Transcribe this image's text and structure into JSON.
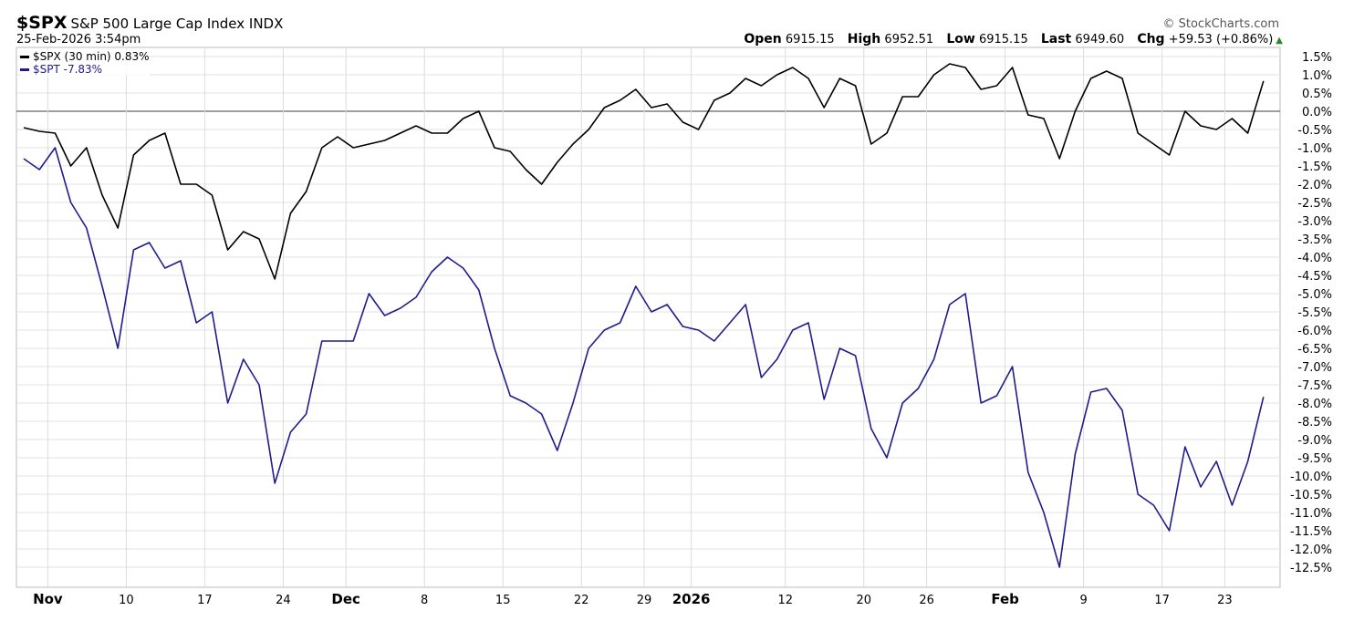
{
  "header": {
    "symbol": "$SPX",
    "name": "S&P 500 Large Cap Index INDX",
    "timestamp": "25-Feb-2026 3:54pm",
    "copyright": "© StockCharts.com",
    "open_label": "Open",
    "open": "6915.15",
    "high_label": "High",
    "high": "6952.51",
    "low_label": "Low",
    "low": "6915.15",
    "last_label": "Last",
    "last": "6949.60",
    "chg_label": "Chg",
    "chg": "+59.53 (+0.86%)",
    "chg_direction_icon": "triangle-up-icon",
    "up_color": "#2a8a2a"
  },
  "chart_data": {
    "type": "line",
    "ylim": [
      -13.0,
      1.75
    ],
    "y_ticks": [
      1.5,
      1.0,
      0.5,
      0.0,
      -0.5,
      -1.0,
      -1.5,
      -2.0,
      -2.5,
      -3.0,
      -3.5,
      -4.0,
      -4.5,
      -5.0,
      -5.5,
      -6.0,
      -6.5,
      -7.0,
      -7.5,
      -8.0,
      -8.5,
      -9.0,
      -9.5,
      -10.0,
      -10.5,
      -11.0,
      -11.5,
      -12.0,
      -12.5
    ],
    "y_tick_suffix": "%",
    "y_axis_side": "right",
    "grid": true,
    "legend_placement": "top-left",
    "x_ticks": [
      {
        "label": "Nov",
        "date": "2025-11-03",
        "bold": true
      },
      {
        "label": "10",
        "date": "2025-11-10"
      },
      {
        "label": "17",
        "date": "2025-11-17"
      },
      {
        "label": "24",
        "date": "2025-11-24"
      },
      {
        "label": "Dec",
        "date": "2025-12-01",
        "bold": true
      },
      {
        "label": "8",
        "date": "2025-12-08"
      },
      {
        "label": "15",
        "date": "2025-12-15"
      },
      {
        "label": "22",
        "date": "2025-12-22"
      },
      {
        "label": "29",
        "date": "2025-12-29"
      },
      {
        "label": "2026",
        "date": "2026-01-02",
        "bold": true
      },
      {
        "label": "12",
        "date": "2026-01-12"
      },
      {
        "label": "20",
        "date": "2026-01-20"
      },
      {
        "label": "26",
        "date": "2026-01-26"
      },
      {
        "label": "Feb",
        "date": "2026-02-02",
        "bold": true
      },
      {
        "label": "9",
        "date": "2026-02-09"
      },
      {
        "label": "17",
        "date": "2026-02-17"
      },
      {
        "label": "23",
        "date": "2026-02-23"
      }
    ],
    "x": [
      "2025-10-30",
      "2025-10-31",
      "2025-11-03",
      "2025-11-04",
      "2025-11-05",
      "2025-11-06",
      "2025-11-07",
      "2025-11-10",
      "2025-11-11",
      "2025-11-12",
      "2025-11-13",
      "2025-11-14",
      "2025-11-17",
      "2025-11-18",
      "2025-11-19",
      "2025-11-20",
      "2025-11-21",
      "2025-11-24",
      "2025-11-25",
      "2025-11-26",
      "2025-11-28",
      "2025-12-01",
      "2025-12-02",
      "2025-12-03",
      "2025-12-04",
      "2025-12-05",
      "2025-12-08",
      "2025-12-09",
      "2025-12-10",
      "2025-12-11",
      "2025-12-12",
      "2025-12-15",
      "2025-12-16",
      "2025-12-17",
      "2025-12-18",
      "2025-12-19",
      "2025-12-22",
      "2025-12-23",
      "2025-12-24",
      "2025-12-26",
      "2025-12-29",
      "2025-12-30",
      "2025-12-31",
      "2026-01-02",
      "2026-01-05",
      "2026-01-06",
      "2026-01-07",
      "2026-01-08",
      "2026-01-09",
      "2026-01-12",
      "2026-01-13",
      "2026-01-14",
      "2026-01-15",
      "2026-01-16",
      "2026-01-20",
      "2026-01-21",
      "2026-01-22",
      "2026-01-23",
      "2026-01-26",
      "2026-01-27",
      "2026-01-28",
      "2026-01-29",
      "2026-01-30",
      "2026-02-02",
      "2026-02-03",
      "2026-02-04",
      "2026-02-05",
      "2026-02-06",
      "2026-02-09",
      "2026-02-10",
      "2026-02-11",
      "2026-02-12",
      "2026-02-13",
      "2026-02-17",
      "2026-02-18",
      "2026-02-19",
      "2026-02-20",
      "2026-02-23",
      "2026-02-24",
      "2026-02-25"
    ],
    "series": [
      {
        "name": "$SPX (30 min) 0.83%",
        "color": "#000000",
        "values": [
          -0.45,
          -0.55,
          -0.6,
          -1.5,
          -1.0,
          -2.3,
          -3.2,
          -1.2,
          -0.8,
          -0.6,
          -2.0,
          -2.0,
          -2.3,
          -3.8,
          -3.3,
          -3.5,
          -4.6,
          -2.8,
          -2.2,
          -1.0,
          -0.7,
          -1.0,
          -0.9,
          -0.8,
          -0.6,
          -0.4,
          -0.6,
          -0.6,
          -0.2,
          0.0,
          -1.0,
          -1.1,
          -1.6,
          -2.0,
          -1.4,
          -0.9,
          -0.5,
          0.1,
          0.3,
          0.6,
          0.1,
          0.2,
          -0.3,
          -0.5,
          0.3,
          0.5,
          0.9,
          0.7,
          1.0,
          1.2,
          0.9,
          0.1,
          0.9,
          0.7,
          -0.9,
          -0.6,
          0.4,
          0.4,
          1.0,
          1.3,
          1.2,
          0.6,
          0.7,
          1.2,
          -0.1,
          -0.2,
          -1.3,
          0.0,
          0.9,
          1.1,
          0.9,
          -0.6,
          -0.9,
          -1.2,
          0.0,
          -0.4,
          -0.5,
          -0.2,
          -0.6,
          0.83
        ]
      },
      {
        "name": "$SPT -7.83%",
        "color": "#1f1d8c",
        "values": [
          -1.3,
          -1.6,
          -1.0,
          -2.5,
          -3.2,
          -4.8,
          -6.5,
          -3.8,
          -3.6,
          -4.3,
          -4.1,
          -5.8,
          -5.5,
          -8.0,
          -6.8,
          -7.5,
          -10.2,
          -8.8,
          -8.3,
          -6.3,
          -6.3,
          -6.3,
          -5.0,
          -5.6,
          -5.4,
          -5.1,
          -4.4,
          -4.0,
          -4.3,
          -4.9,
          -6.5,
          -7.8,
          -8.0,
          -8.3,
          -9.3,
          -8.0,
          -6.5,
          -6.0,
          -5.8,
          -4.8,
          -5.5,
          -5.3,
          -5.9,
          -6.0,
          -6.3,
          -5.8,
          -5.3,
          -7.3,
          -6.8,
          -6.0,
          -5.8,
          -7.9,
          -6.5,
          -6.7,
          -8.7,
          -9.5,
          -8.0,
          -7.6,
          -6.8,
          -5.3,
          -5.0,
          -8.0,
          -7.8,
          -7.0,
          -9.9,
          -11.0,
          -12.5,
          -9.4,
          -7.7,
          -7.6,
          -8.2,
          -10.5,
          -10.8,
          -11.5,
          -9.2,
          -10.3,
          -9.6,
          -10.8,
          -9.6,
          -7.83
        ]
      }
    ]
  }
}
